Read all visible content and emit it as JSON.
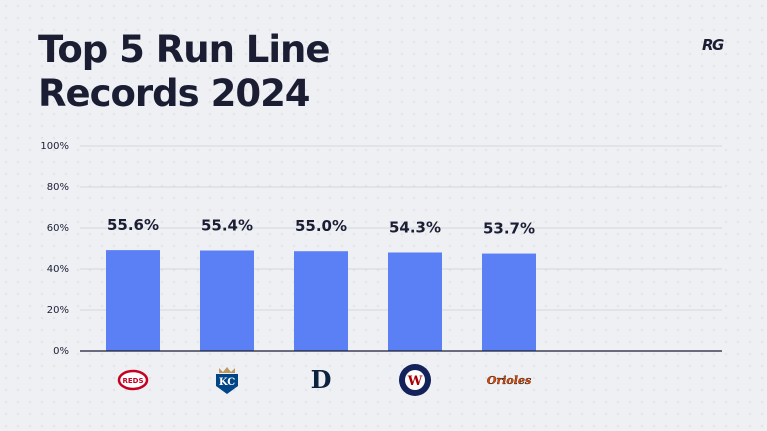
{
  "header": {
    "title_line1": "Top 5 Run Line",
    "title_line2": "Records 2024",
    "brand": "RG"
  },
  "colors": {
    "bar": "#5b7ff5",
    "text": "#1b1e33",
    "grid": "#d4d6de",
    "axis": "#1b1e33"
  },
  "chart_data": {
    "type": "bar",
    "title": "Top 5 Run Line Records 2024",
    "categories": [
      "Reds",
      "Royals",
      "Tigers",
      "Nationals",
      "Orioles"
    ],
    "values": [
      55.6,
      55.4,
      55.0,
      54.3,
      53.7
    ],
    "value_labels": [
      "55.6%",
      "55.4%",
      "55.0%",
      "54.3%",
      "53.7%"
    ],
    "y_ticks": [
      "0%",
      "20%",
      "40%",
      "60%",
      "80%",
      "100%"
    ],
    "ylim": [
      0,
      100
    ],
    "grid": true,
    "category_icons": [
      "reds-logo-icon",
      "royals-logo-icon",
      "tigers-logo-icon",
      "nationals-logo-icon",
      "orioles-logo-icon"
    ]
  }
}
